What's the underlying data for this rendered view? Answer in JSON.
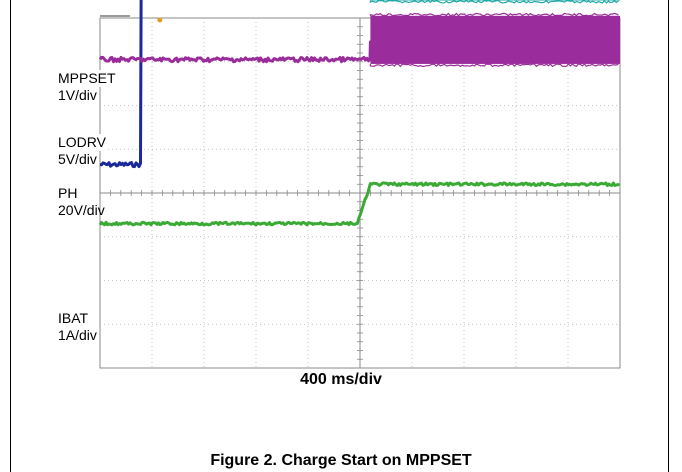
{
  "chart_data": {
    "type": "line",
    "xlabel": "400 ms/div",
    "grid": true,
    "x_divisions": 10,
    "y_divisions": 8,
    "trigger_time_div": 5,
    "series": [
      {
        "name": "MPPSET",
        "scale": "1V/div",
        "color": "#1a2a9c",
        "time_div": [
          0,
          0.8,
          0.8,
          10
        ],
        "level_div": [
          0.65,
          0.65,
          7.5,
          7.5
        ],
        "noise_div": 0.05
      },
      {
        "name": "LODRV",
        "scale": "5V/div",
        "color": "#1fa9a6",
        "time_div": [
          0,
          5.2,
          5.2,
          10
        ],
        "level_div": [
          4.5,
          4.5,
          5.6,
          5.6
        ],
        "switching_band_div": [
          4.4,
          5.6
        ],
        "noise_div": 0.05
      },
      {
        "name": "PH",
        "scale": "20V/div",
        "color": "#9a2d9b",
        "time_div": [
          0,
          5.2,
          5.2,
          10
        ],
        "level_div": [
          3.05,
          3.05,
          3.45,
          3.45
        ],
        "switching_band_div": [
          2.95,
          4.05
        ],
        "noise_div": 0.05
      },
      {
        "name": "IBAT",
        "scale": "1A/div",
        "color": "#3aaa35",
        "time_div": [
          0,
          4.95,
          5.2,
          10
        ],
        "level_div": [
          -0.7,
          -0.7,
          0.2,
          0.2
        ],
        "noise_div": 0.03
      }
    ]
  },
  "caption": "Figure 2. Charge Start on MPPSET"
}
